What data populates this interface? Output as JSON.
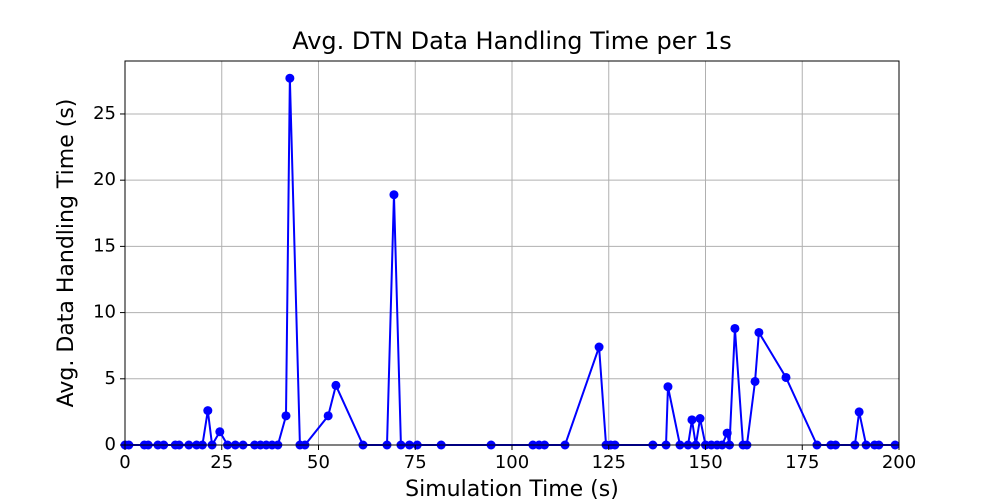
{
  "chart_data": {
    "type": "line",
    "title": "Avg. DTN Data Handling Time per 1s",
    "x_label": "Simulation Time (s)",
    "y_label": "Avg. Data Handling Time (s)",
    "xlim": [
      0,
      200
    ],
    "ylim": [
      0,
      29
    ],
    "xticks": [
      0,
      25,
      50,
      75,
      100,
      125,
      150,
      175,
      200
    ],
    "yticks": [
      0,
      5,
      10,
      15,
      20,
      25
    ],
    "grid": true,
    "series": [
      {
        "name": "Avg. Data Handling Time",
        "color": "#0000ff",
        "x": [
          0,
          1,
          5,
          6,
          8.5,
          10,
          13,
          14,
          16.5,
          18.5,
          20,
          21.4,
          22.5,
          24.5,
          26.5,
          28.5,
          30.5,
          33.5,
          35,
          36.5,
          38,
          39.5,
          41.6,
          42.6,
          45.2,
          46.5,
          52.5,
          54.5,
          61.5,
          67.7,
          69.5,
          71.3,
          73.5,
          75.5,
          81.7,
          94.6,
          105.4,
          107,
          108.4,
          113.7,
          122.5,
          124.3,
          125.5,
          126.6,
          136.4,
          139.8,
          140.3,
          143.4,
          145.5,
          146.5,
          147.5,
          148.6,
          150,
          151.5,
          153,
          154.3,
          155.6,
          156.2,
          157.6,
          159.7,
          160.7,
          162.8,
          163.8,
          170.8,
          178.8,
          182.4,
          183.6,
          188.6,
          189.7,
          191.5,
          193.7,
          194.8,
          199
        ],
        "values": [
          0,
          0,
          0,
          0,
          0,
          0,
          0,
          0,
          0,
          0,
          0,
          2.6,
          0,
          1.0,
          0,
          0,
          0,
          0,
          0,
          0,
          0,
          0,
          2.2,
          27.7,
          0,
          0,
          2.2,
          4.5,
          0,
          0,
          18.9,
          0,
          0,
          0,
          0,
          0,
          0,
          0,
          0,
          0,
          7.4,
          0,
          0,
          0,
          0,
          0,
          4.4,
          0,
          0,
          1.9,
          0,
          2.0,
          0,
          0,
          0,
          0,
          0.9,
          0,
          8.8,
          0,
          0,
          4.8,
          8.5,
          5.1,
          0,
          0,
          0,
          0,
          2.5,
          0,
          0,
          0,
          0
        ]
      }
    ]
  }
}
